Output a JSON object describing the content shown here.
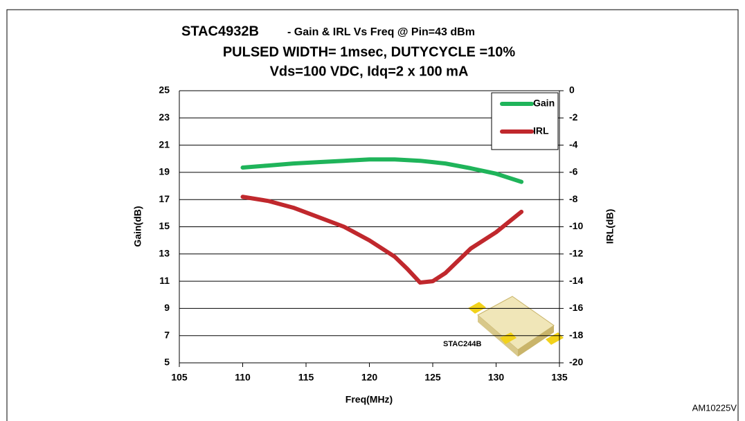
{
  "chart_data": {
    "type": "line",
    "title": "STAC4932B",
    "subtitle": [
      "- Gain & IRL Vs Freq @ Pin=43 dBm",
      "PULSED WIDTH= 1msec, DUTYCYCLE =10%",
      "Vds=100 VDC, Idq=2 x 100 mA"
    ],
    "x_label": "Freq(MHz)",
    "y_label": "Gain(dB)",
    "y2_label": "IRL(dB)",
    "x": [
      110,
      112,
      114,
      116,
      118,
      120,
      122,
      123,
      124,
      125,
      126,
      128,
      130,
      132
    ],
    "series": [
      {
        "name": "Gain",
        "color": "#1fb45a",
        "values": [
          19.35,
          19.5,
          19.65,
          19.75,
          19.85,
          19.95,
          19.95,
          19.9,
          19.85,
          19.75,
          19.65,
          19.3,
          18.9,
          18.3
        ]
      },
      {
        "name": "IRL",
        "color": "#c0282d",
        "axis": "y2",
        "values": [
          -7.8,
          -8.1,
          -8.6,
          -9.3,
          -10.0,
          -11.0,
          -12.2,
          -13.1,
          -14.1,
          -14.0,
          -13.4,
          -11.6,
          -10.4,
          -8.9
        ]
      }
    ],
    "xlim": [
      105,
      135
    ],
    "xticks": [
      105,
      110,
      115,
      120,
      125,
      130,
      135
    ],
    "ylim": [
      5,
      25
    ],
    "yticks": [
      5,
      7,
      9,
      11,
      13,
      15,
      17,
      19,
      21,
      23,
      25
    ],
    "y2lim": [
      -20,
      0
    ],
    "y2ticks": [
      -20,
      -18,
      -16,
      -14,
      -12,
      -10,
      -8,
      -6,
      -4,
      -2,
      0
    ],
    "grid": true,
    "legend": "upper right",
    "annotations": [
      "STAC244B"
    ],
    "figure_id": "AM10225V"
  }
}
